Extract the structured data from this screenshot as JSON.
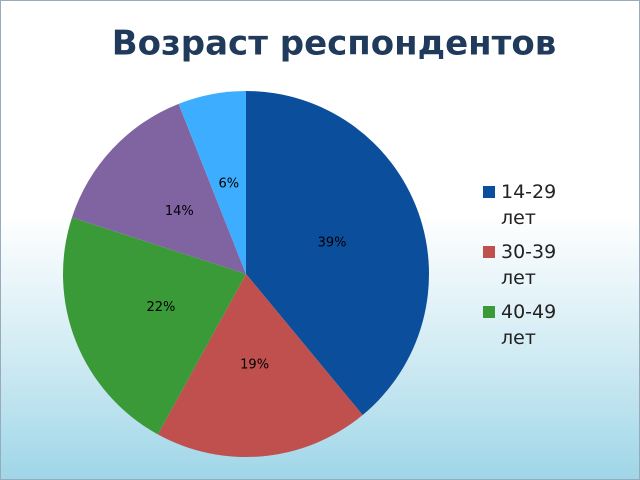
{
  "chart_data": {
    "type": "pie",
    "title": "Возраст респондентов",
    "categories": [
      "14-29 лет",
      "30-39 лет",
      "40-49 лет",
      null,
      null
    ],
    "values": [
      39,
      19,
      22,
      14,
      6
    ],
    "value_labels": [
      "39%",
      "19%",
      "22%",
      "14%",
      "6%"
    ],
    "colors": [
      "#0b4f9c",
      "#c0504d",
      "#3a9a38",
      "#8064a2",
      "#3daeff"
    ],
    "legend": "right"
  }
}
